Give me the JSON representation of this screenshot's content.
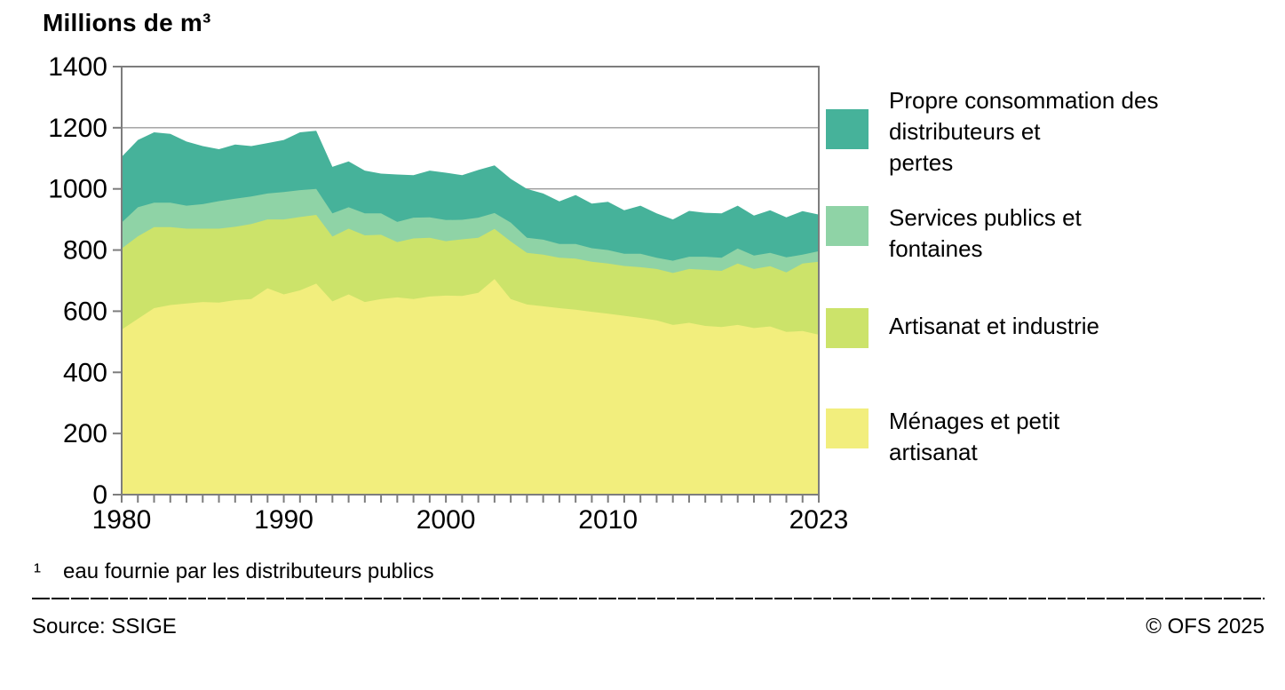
{
  "title": "Millions de m³",
  "footnote": {
    "marker": "¹",
    "text": "eau fournie par les distributeurs publics"
  },
  "footer": {
    "source": "Source: SSIGE",
    "copyright": "© OFS 2025"
  },
  "colors": {
    "menages": "#f2ee7d",
    "artisanat": "#cce36a",
    "services": "#8fd3a6",
    "pertes": "#46b29a",
    "grid": "#9b9b9b",
    "axis": "#7d7d7d",
    "text": "#000000"
  },
  "legend": {
    "items": [
      {
        "key": "pertes",
        "lines": [
          "Propre consommation des",
          "distributeurs et",
          "pertes"
        ]
      },
      {
        "key": "services",
        "lines": [
          "Services publics et",
          "fontaines"
        ]
      },
      {
        "key": "artisanat",
        "lines": [
          "Artisanat et industrie"
        ]
      },
      {
        "key": "menages",
        "lines": [
          "Ménages et petit",
          "artisanat"
        ]
      }
    ]
  },
  "chart_data": {
    "type": "area",
    "stacked": true,
    "title": "Millions de m³",
    "ylabel": "Millions de m³",
    "xlabel": "",
    "ylim": [
      0,
      1400
    ],
    "yticks": [
      0,
      200,
      400,
      600,
      800,
      1000,
      1200,
      1400
    ],
    "xticks_labeled": [
      1980,
      1990,
      2000,
      2010,
      2023
    ],
    "xtick_minor_every": 1,
    "grid": "horizontal",
    "legend_position": "right",
    "x": [
      1980,
      1981,
      1982,
      1983,
      1984,
      1985,
      1986,
      1987,
      1988,
      1989,
      1990,
      1991,
      1992,
      1993,
      1994,
      1995,
      1996,
      1997,
      1998,
      1999,
      2000,
      2001,
      2002,
      2003,
      2004,
      2005,
      2006,
      2007,
      2008,
      2009,
      2010,
      2011,
      2012,
      2013,
      2014,
      2015,
      2016,
      2017,
      2018,
      2019,
      2020,
      2021,
      2022,
      2023
    ],
    "series": [
      {
        "key": "menages",
        "name": "Ménages et petit artisanat",
        "values": [
          540,
          575,
          610,
          620,
          625,
          630,
          628,
          636,
          640,
          675,
          655,
          668,
          690,
          632,
          655,
          630,
          640,
          645,
          640,
          648,
          651,
          650,
          660,
          705,
          640,
          622,
          616,
          610,
          605,
          598,
          592,
          585,
          578,
          570,
          555,
          562,
          552,
          548,
          555,
          545,
          550,
          532,
          535,
          523
        ]
      },
      {
        "key": "artisanat",
        "name": "Artisanat et industrie",
        "values": [
          265,
          270,
          265,
          255,
          245,
          240,
          242,
          240,
          245,
          225,
          245,
          240,
          225,
          212,
          215,
          218,
          210,
          181,
          198,
          192,
          178,
          185,
          180,
          164,
          188,
          169,
          169,
          165,
          167,
          164,
          164,
          163,
          166,
          168,
          170,
          176,
          183,
          184,
          201,
          193,
          197,
          195,
          221,
          239
        ]
      },
      {
        "key": "services",
        "name": "Services publics et fontaines",
        "values": [
          85,
          95,
          80,
          80,
          75,
          80,
          90,
          92,
          90,
          85,
          90,
          88,
          85,
          76,
          70,
          72,
          70,
          66,
          68,
          67,
          69,
          64,
          66,
          52,
          62,
          49,
          49,
          45,
          48,
          44,
          44,
          40,
          44,
          37,
          40,
          40,
          43,
          43,
          49,
          44,
          44,
          49,
          29,
          34
        ]
      },
      {
        "key": "pertes",
        "name": "Propre consommation des distributeurs et pertes",
        "values": [
          215,
          220,
          230,
          225,
          210,
          190,
          170,
          177,
          165,
          165,
          170,
          189,
          190,
          152,
          150,
          140,
          130,
          155,
          139,
          153,
          155,
          146,
          156,
          156,
          143,
          160,
          151,
          139,
          160,
          146,
          158,
          142,
          157,
          145,
          135,
          150,
          144,
          145,
          140,
          131,
          139,
          131,
          142,
          120
        ]
      }
    ]
  }
}
